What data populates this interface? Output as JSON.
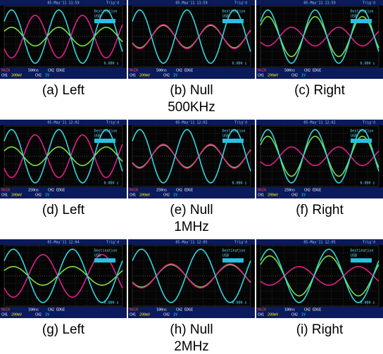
{
  "scope_labels": {
    "trig": "Trig'd",
    "destination": "Destination",
    "usb": "USB",
    "offset": "0.000 s",
    "main": "MAIN",
    "edge": "CH2 EDGE",
    "ch1": "CH1",
    "ch1_scale": "200mV",
    "ch2": "CH2",
    "ch2_scale": "1V"
  },
  "rows": [
    {
      "frequency": "500KHz",
      "timebase": "500ns",
      "panels": [
        {
          "caption": "(a)  Left",
          "timestamp": "05-May'11 11:59"
        },
        {
          "caption": "(b)  Null",
          "timestamp": "05-May'11 11:59"
        },
        {
          "caption": "(c)  Right",
          "timestamp": "05-May'11 11:59"
        }
      ]
    },
    {
      "frequency": "1MHz",
      "timebase": "250ns",
      "panels": [
        {
          "caption": "(d)  Left",
          "timestamp": "05-May'11 12:02"
        },
        {
          "caption": "(e)  Null",
          "timestamp": "05-May'11 12:02"
        },
        {
          "caption": "(f)  Right",
          "timestamp": "05-May'11 12:02"
        }
      ]
    },
    {
      "frequency": "2MHz",
      "timebase": "100ns",
      "panels": [
        {
          "caption": "(g)  Left",
          "timestamp": "05-May'11 12:04"
        },
        {
          "caption": "(h)  Null",
          "timestamp": "05-May'11 12:05"
        },
        {
          "caption": "(i)  Right",
          "timestamp": "05-May'11 12:05"
        }
      ]
    }
  ]
}
